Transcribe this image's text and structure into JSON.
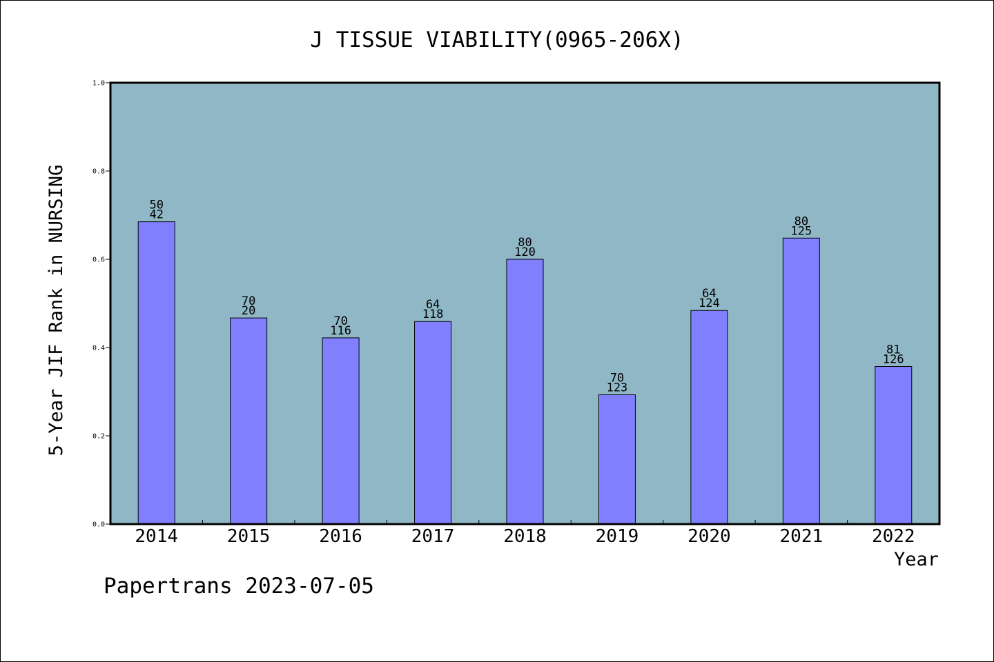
{
  "chart_data": {
    "type": "bar",
    "title": "J TISSUE VIABILITY(0965-206X)",
    "xlabel": "Year",
    "ylabel": "5-Year JIF Rank in NURSING",
    "ylim": [
      0,
      1.0
    ],
    "yticks": [
      "0.0",
      "0.2",
      "0.4",
      "0.6",
      "0.8",
      "1.0"
    ],
    "ytick_values": [
      0,
      0.2,
      0.4,
      0.6,
      0.8,
      1.0
    ],
    "categories": [
      "2014",
      "2015",
      "2016",
      "2017",
      "2018",
      "2019",
      "2020",
      "2021",
      "2022"
    ],
    "values": [
      0.685,
      0.467,
      0.422,
      0.459,
      0.6,
      0.293,
      0.484,
      0.648,
      0.357
    ],
    "labels_top": [
      "50",
      "70",
      "70",
      "64",
      "80",
      "70",
      "64",
      "80",
      "81"
    ],
    "labels_bottom": [
      "42",
      "20",
      "116",
      "118",
      "120",
      "123",
      "124",
      "125",
      "126"
    ],
    "grid": false,
    "colors": {
      "plot_bg": "#8fb7c5",
      "bar": "#8080ff",
      "bar_edge": "#000000"
    }
  },
  "footer": {
    "credit": "Papertrans 2023-07-05"
  }
}
